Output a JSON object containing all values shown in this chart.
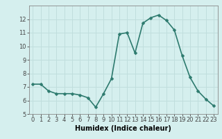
{
  "x": [
    0,
    1,
    2,
    3,
    4,
    5,
    6,
    7,
    8,
    9,
    10,
    11,
    12,
    13,
    14,
    15,
    16,
    17,
    18,
    19,
    20,
    21,
    22,
    23
  ],
  "y": [
    7.2,
    7.2,
    6.7,
    6.5,
    6.5,
    6.5,
    6.4,
    6.2,
    5.5,
    6.5,
    7.6,
    10.9,
    11.0,
    9.5,
    11.7,
    12.1,
    12.3,
    11.9,
    11.2,
    9.3,
    7.7,
    6.7,
    6.1,
    5.6
  ],
  "xlabel": "Humidex (Indice chaleur)",
  "ylim": [
    5,
    13
  ],
  "xlim": [
    -0.5,
    23.5
  ],
  "yticks": [
    5,
    6,
    7,
    8,
    9,
    10,
    11,
    12
  ],
  "xticks": [
    0,
    1,
    2,
    3,
    4,
    5,
    6,
    7,
    8,
    9,
    10,
    11,
    12,
    13,
    14,
    15,
    16,
    17,
    18,
    19,
    20,
    21,
    22,
    23
  ],
  "line_color": "#2d7a6e",
  "marker_color": "#2d7a6e",
  "bg_color": "#d5efee",
  "grid_color": "#c0dedd",
  "axis_color": "#888888",
  "xlabel_fontsize": 7,
  "tick_fontsize": 6,
  "line_width": 1.2,
  "marker_size": 2.5
}
